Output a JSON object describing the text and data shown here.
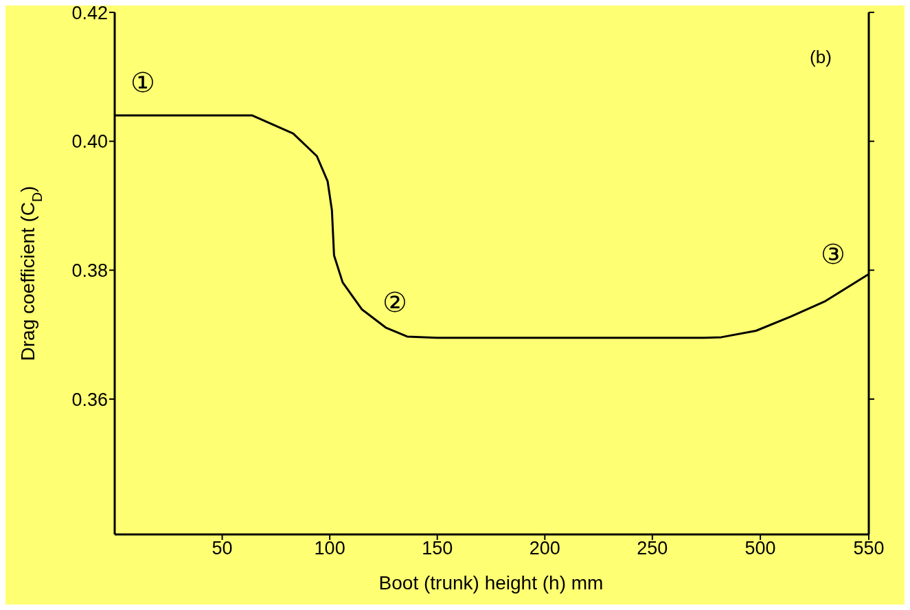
{
  "chart_data": [
    {
      "type": "line",
      "xlabel": "Boot (trunk) height (h) mm",
      "ylabel": "Drag coefficient (C$_{D}$)",
      "x": [
        0,
        30,
        64,
        83,
        94,
        99,
        101,
        102,
        106,
        115,
        126,
        136,
        150,
        200,
        250,
        274
      ],
      "series": [
        {
          "color": "#000000",
          "values": [
            0.404,
            0.404,
            0.404,
            0.4012,
            0.3977,
            0.3938,
            0.3893,
            0.3823,
            0.3781,
            0.3739,
            0.3711,
            0.3697,
            0.3695,
            0.3695,
            0.3695,
            0.3695
          ]
        }
      ],
      "xlim": [
        0,
        274
      ],
      "xticks": [
        50,
        100,
        150,
        200,
        250
      ],
      "ylim": [
        0.339,
        0.42
      ],
      "yticks": [
        {
          "value": 0.36,
          "label": "0.36"
        },
        {
          "value": 0.38,
          "label": "0.38"
        },
        {
          "value": 0.4,
          "label": "0.40"
        },
        {
          "value": 0.42,
          "label": "0.42"
        }
      ],
      "annotations": [
        "①",
        "②"
      ],
      "marker": "none",
      "line_style": "solid",
      "grid": false,
      "legend": false
    },
    {
      "type": "line",
      "x": [
        474,
        482,
        498,
        514,
        530,
        550
      ],
      "series": [
        {
          "color": "#000000",
          "values": [
            0.3695,
            0.3696,
            0.3706,
            0.3728,
            0.3752,
            0.3794
          ]
        }
      ],
      "xlim": [
        474,
        550
      ],
      "xticks": [
        500,
        550
      ],
      "ylim": [
        0.339,
        0.42
      ],
      "yticks": [
        0.36,
        0.38,
        0.4,
        0.42
      ],
      "annotations": [
        "③",
        "(b)"
      ],
      "tick_labels": "x",
      "marker": "none",
      "line_style": "solid",
      "grid": false,
      "legend": false
    }
  ]
}
